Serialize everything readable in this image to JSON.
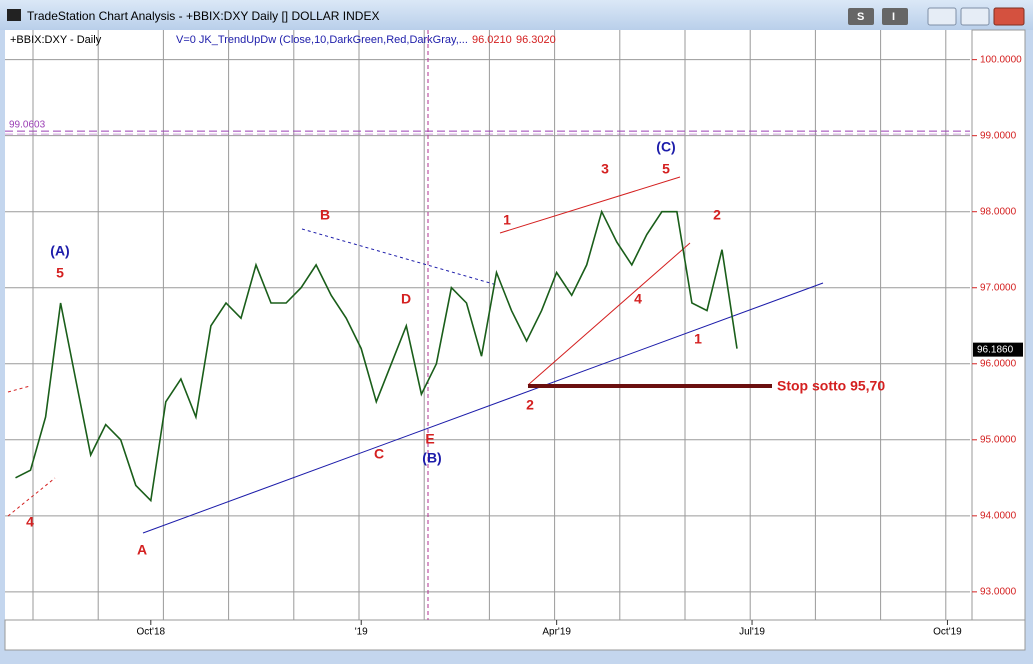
{
  "window": {
    "title": "TradeStation Chart Analysis - +BBIX:DXY Daily [] DOLLAR INDEX",
    "buttons": [
      "S",
      "I"
    ]
  },
  "header": {
    "symbol": "+BBIX:DXY - Daily",
    "indicator": "V=0  JK_TrendUpDw (Close,10,DarkGreen,Red,DarkGray,...",
    "value1": "96.0210",
    "value2": "96.3020"
  },
  "chart_data": {
    "type": "line",
    "categories": [
      null,
      null,
      null,
      null,
      null,
      null,
      null,
      null,
      null,
      "Oct'18",
      null,
      null,
      null,
      null,
      null,
      null,
      null,
      null,
      null,
      null,
      null,
      null,
      null,
      "'19",
      null,
      null,
      null,
      null,
      null,
      null,
      null,
      null,
      null,
      null,
      null,
      null,
      "Apr'19",
      null,
      null,
      null,
      null,
      null,
      null,
      null,
      null,
      null,
      null,
      null,
      null,
      "Jul'19",
      null,
      null,
      null,
      null,
      null,
      null,
      null,
      null,
      null,
      null,
      null,
      null,
      "Oct'19",
      null
    ],
    "series": [
      {
        "name": "DXY",
        "color": "#1a5e1a",
        "values": [
          94.5,
          94.6,
          95.3,
          96.8,
          95.8,
          94.8,
          95.2,
          95.0,
          94.4,
          94.2,
          95.5,
          95.8,
          95.3,
          96.5,
          96.8,
          96.6,
          97.3,
          96.8,
          96.8,
          97.0,
          97.3,
          96.9,
          96.6,
          96.2,
          95.5,
          96.0,
          96.5,
          95.6,
          96.0,
          97.0,
          96.8,
          96.1,
          97.2,
          96.7,
          96.3,
          96.7,
          97.2,
          96.9,
          97.3,
          98.0,
          97.6,
          97.3,
          97.7,
          98.0,
          98.0,
          96.8,
          96.7,
          97.5,
          96.2,
          null,
          null,
          null,
          null,
          null,
          null,
          null,
          null,
          null,
          null,
          null,
          null,
          null,
          null,
          null
        ]
      }
    ],
    "ylim": [
      92.63,
      100.39
    ],
    "yticks": [
      {
        "value": 93,
        "label": "93.0000"
      },
      {
        "value": 94,
        "label": "94.0000"
      },
      {
        "value": 95,
        "label": "95.0000"
      },
      {
        "value": 96,
        "label": "96.0000"
      },
      {
        "value": 97,
        "label": "97.0000"
      },
      {
        "value": 98,
        "label": "98.0000"
      },
      {
        "value": 99,
        "label": "99.0000"
      },
      {
        "value": 100,
        "label": "100.0000"
      }
    ],
    "grid": true,
    "level": 99.0603,
    "last_price": {
      "value": 96.186,
      "label": "96.1860"
    },
    "annotations": [
      "(A)",
      "5",
      "B",
      "D",
      "E",
      "(B)",
      "C",
      "A",
      "4",
      "1",
      "2",
      "3",
      "5",
      "(C)",
      "4",
      "2",
      "1",
      "Stop sotto 95,70"
    ]
  }
}
